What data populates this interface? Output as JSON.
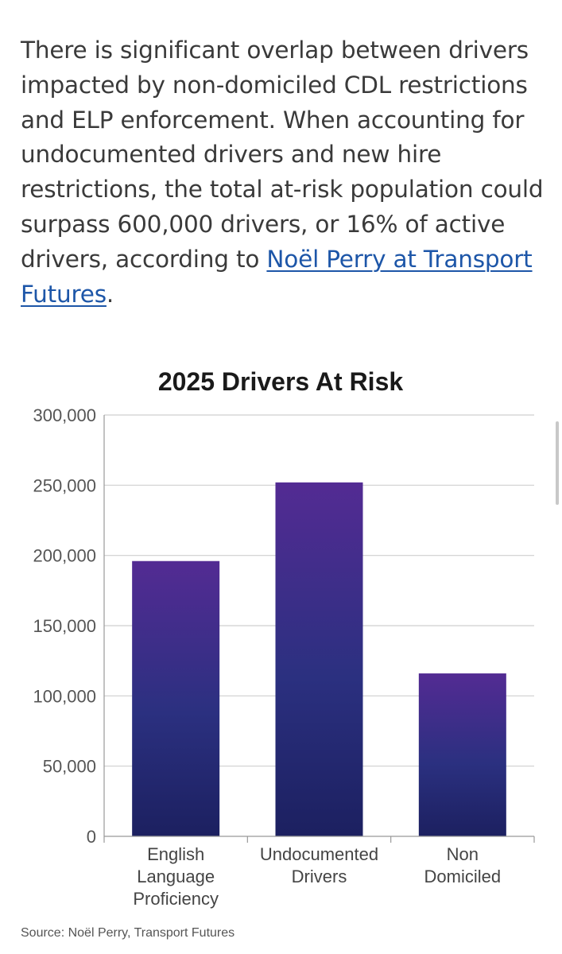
{
  "article": {
    "text_before_link": "There is significant overlap between drivers impacted by non-domiciled CDL restrictions and ELP enforcement. When accounting for undocumented drivers and new hire restrictions, the total at-risk population could surpass 600,000 drivers, or 16% of active drivers, according to ",
    "link_text": "Noël Perry at Transport Futures",
    "text_after_link": "."
  },
  "chart_data": {
    "type": "bar",
    "title": "2025 Drivers At Risk",
    "categories": [
      [
        "English",
        "Language",
        "Proficiency"
      ],
      [
        "Undocumented",
        "Drivers"
      ],
      [
        "Non",
        "Domiciled"
      ]
    ],
    "values": [
      196000,
      252000,
      116000
    ],
    "ylim": [
      0,
      300000
    ],
    "yticks": [
      0,
      50000,
      100000,
      150000,
      200000,
      250000,
      300000
    ],
    "ytick_labels": [
      "0",
      "50,000",
      "100,000",
      "150,000",
      "200,000",
      "250,000",
      "300,000"
    ],
    "grid": true,
    "xlabel": "",
    "ylabel": "",
    "bar_gradient": {
      "top": "#532b93",
      "bottom": "#1c2060"
    },
    "source": "Source: Noël Perry, Transport Futures"
  },
  "colors": {
    "link": "#1d56a8",
    "grid": "#cfcfcf",
    "axis": "#999999"
  }
}
